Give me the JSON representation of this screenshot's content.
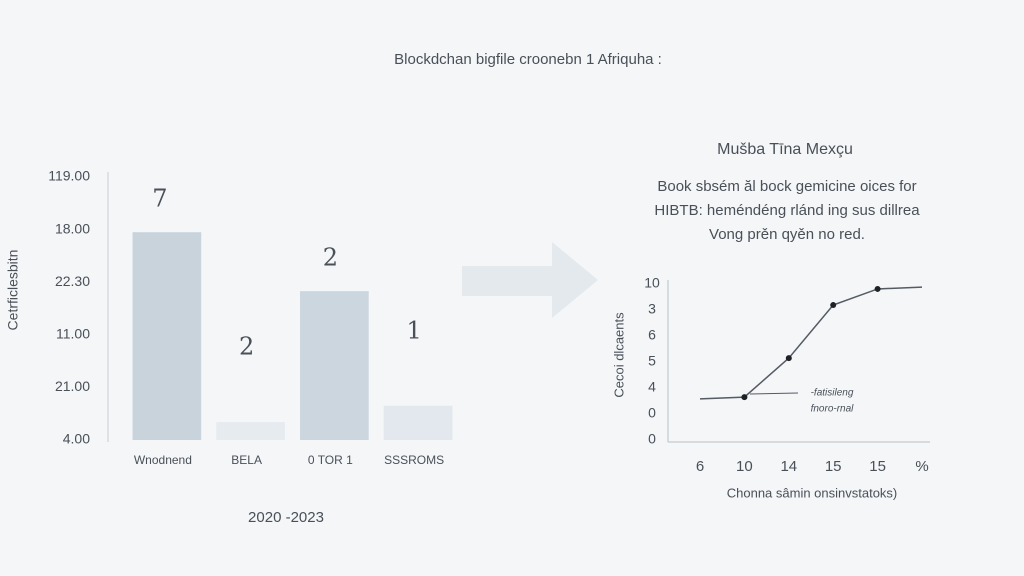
{
  "title": "Blockdchan bigfile croonebn 1 Afriquha :",
  "chart_data": [
    {
      "type": "bar",
      "ylabel": "Cetrficlesbitn",
      "xlabel": "2020 -2023",
      "y_labels": [
        "4.00",
        "21.00",
        "11.00",
        "22.30",
        "18.00",
        "119.00"
      ],
      "categories": [
        "Wnodnend",
        "BELA",
        "0 TOR 1",
        "SSSROMS"
      ],
      "values": [
        3.95,
        0.34,
        2.83,
        0.65
      ],
      "bar_annotations": [
        "7",
        "2",
        "2",
        "1"
      ],
      "colors": [
        "#c9d3dc",
        "#e6ebef",
        "#ccd6de",
        "#e2e8ed"
      ],
      "ylim": [
        0,
        5
      ]
    },
    {
      "type": "line",
      "title": "Mušba Tīna Mexçu",
      "description": [
        "Book sbsém ăl bock gemicine oices for",
        "HIBTB: heméndéng rlánd ing sus dillrea",
        "Vong prěn qyěn no red."
      ],
      "ylabel": "Cecoi dlcaents",
      "xlabel": "Chonna sâmin onsinvstatoks)",
      "annotation": [
        "-fatisileng",
        "fnoro-rnal"
      ],
      "y_labels": [
        "0",
        "0",
        "4",
        "5",
        "6",
        "3",
        "10"
      ],
      "categories": [
        "6",
        "10",
        "14",
        "15",
        "15",
        "%"
      ],
      "values": [
        1.58,
        1.65,
        3.15,
        5.19,
        5.81,
        5.88
      ],
      "markers": [
        false,
        true,
        true,
        true,
        true,
        false
      ],
      "color": "#555b63",
      "ylim": [
        0,
        6
      ]
    }
  ]
}
